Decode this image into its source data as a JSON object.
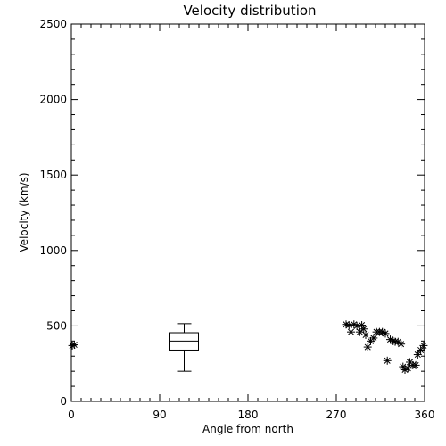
{
  "chart_data": {
    "type": "scatter",
    "title": "Velocity distribution",
    "xlabel": "Angle from north",
    "ylabel": "Velocity (km/s)",
    "xlim": [
      0,
      360
    ],
    "ylim": [
      0,
      2500
    ],
    "x_ticks": [
      0,
      90,
      180,
      270,
      360
    ],
    "y_ticks": [
      0,
      500,
      1000,
      1500,
      2000,
      2500
    ],
    "grid": false,
    "box": {
      "x": 115,
      "whisker_low": 200,
      "q1": 340,
      "median": 400,
      "q3": 455,
      "whisker_high": 515
    },
    "points": [
      {
        "x": 1,
        "y": 370
      },
      {
        "x": 3,
        "y": 375
      },
      {
        "x": 280,
        "y": 510
      },
      {
        "x": 283,
        "y": 505
      },
      {
        "x": 285,
        "y": 460
      },
      {
        "x": 288,
        "y": 510
      },
      {
        "x": 291,
        "y": 500
      },
      {
        "x": 294,
        "y": 460
      },
      {
        "x": 296,
        "y": 505
      },
      {
        "x": 298,
        "y": 480
      },
      {
        "x": 300,
        "y": 440
      },
      {
        "x": 302,
        "y": 360
      },
      {
        "x": 305,
        "y": 400
      },
      {
        "x": 308,
        "y": 420
      },
      {
        "x": 311,
        "y": 460
      },
      {
        "x": 314,
        "y": 460
      },
      {
        "x": 317,
        "y": 460
      },
      {
        "x": 320,
        "y": 450
      },
      {
        "x": 322,
        "y": 270
      },
      {
        "x": 325,
        "y": 410
      },
      {
        "x": 328,
        "y": 400
      },
      {
        "x": 330,
        "y": 395
      },
      {
        "x": 333,
        "y": 395
      },
      {
        "x": 336,
        "y": 380
      },
      {
        "x": 338,
        "y": 230
      },
      {
        "x": 340,
        "y": 210
      },
      {
        "x": 343,
        "y": 220
      },
      {
        "x": 345,
        "y": 260
      },
      {
        "x": 348,
        "y": 240
      },
      {
        "x": 351,
        "y": 240
      },
      {
        "x": 353,
        "y": 310
      },
      {
        "x": 356,
        "y": 340
      },
      {
        "x": 359,
        "y": 370
      }
    ]
  }
}
